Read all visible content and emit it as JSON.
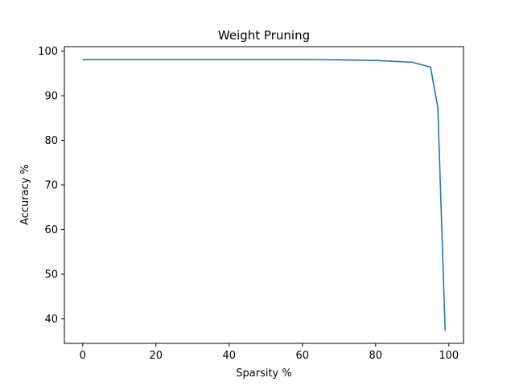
{
  "chart_data": {
    "type": "line",
    "title": "Weight Pruning",
    "xlabel": "Sparsity %",
    "ylabel": "Accuracy %",
    "xlim": [
      -5,
      104
    ],
    "ylim": [
      34.5,
      101
    ],
    "xticks": [
      0,
      20,
      40,
      60,
      80,
      100
    ],
    "yticks": [
      40,
      50,
      60,
      70,
      80,
      90,
      100
    ],
    "grid": false,
    "series": [
      {
        "color": "#1f77b4",
        "x": [
          0,
          10,
          20,
          30,
          40,
          50,
          60,
          70,
          80,
          90,
          95,
          97,
          99
        ],
        "y": [
          98.1,
          98.1,
          98.1,
          98.1,
          98.1,
          98.1,
          98.1,
          98.05,
          97.9,
          97.5,
          96.4,
          87.4,
          37.3
        ]
      }
    ]
  }
}
